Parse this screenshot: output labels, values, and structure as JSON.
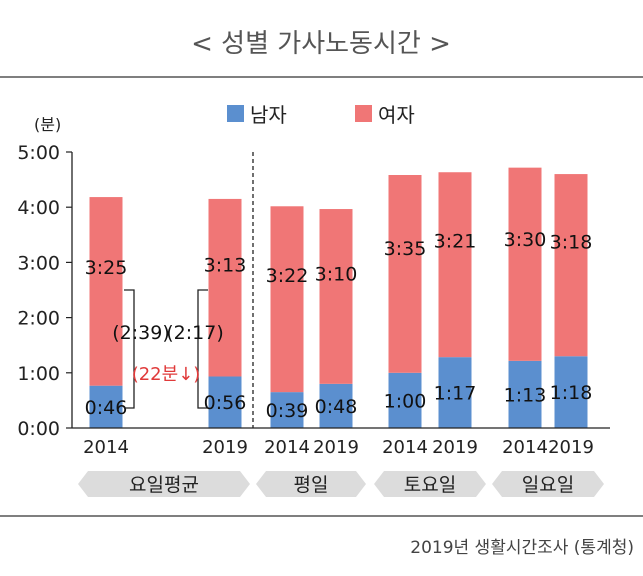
{
  "chart_data": {
    "type": "bar",
    "stacked": true,
    "title": "< 성별 가사노동시간 >",
    "unit_label": "(분)",
    "source": "2019년 생활시간조사 (통계청)",
    "y_ticks": [
      "0:00",
      "1:00",
      "2:00",
      "3:00",
      "4:00",
      "5:00"
    ],
    "ylim_minutes": [
      0,
      300
    ],
    "legend": {
      "placement": "top-center"
    },
    "series": [
      {
        "name": "남자",
        "color": "#5b8fcf",
        "values_minutes": [
          46,
          56,
          39,
          48,
          60,
          77,
          73,
          78
        ],
        "labels": [
          "0:46",
          "0:56",
          "0:39",
          "0:48",
          "1:00",
          "1:17",
          "1:13",
          "1:18"
        ]
      },
      {
        "name": "여자",
        "color": "#f07676",
        "values_minutes": [
          205,
          193,
          202,
          190,
          215,
          201,
          210,
          198
        ],
        "labels": [
          "3:25",
          "3:13",
          "3:22",
          "3:10",
          "3:35",
          "3:21",
          "3:30",
          "3:18"
        ]
      }
    ],
    "bars": [
      {
        "year": "2014",
        "group": "요일평균"
      },
      {
        "year": "2019",
        "group": "요일평균"
      },
      {
        "year": "2014",
        "group": "평일"
      },
      {
        "year": "2019",
        "group": "평일"
      },
      {
        "year": "2014",
        "group": "토요일"
      },
      {
        "year": "2019",
        "group": "토요일"
      },
      {
        "year": "2014",
        "group": "일요일"
      },
      {
        "year": "2019",
        "group": "일요일"
      }
    ],
    "groups": [
      "요일평균",
      "평일",
      "토요일",
      "일요일"
    ],
    "annotations": {
      "gap_2014": "(2:39)",
      "gap_2019": "(2:17)",
      "change": "(22분↓)",
      "change_color": "#e03a3a"
    }
  }
}
